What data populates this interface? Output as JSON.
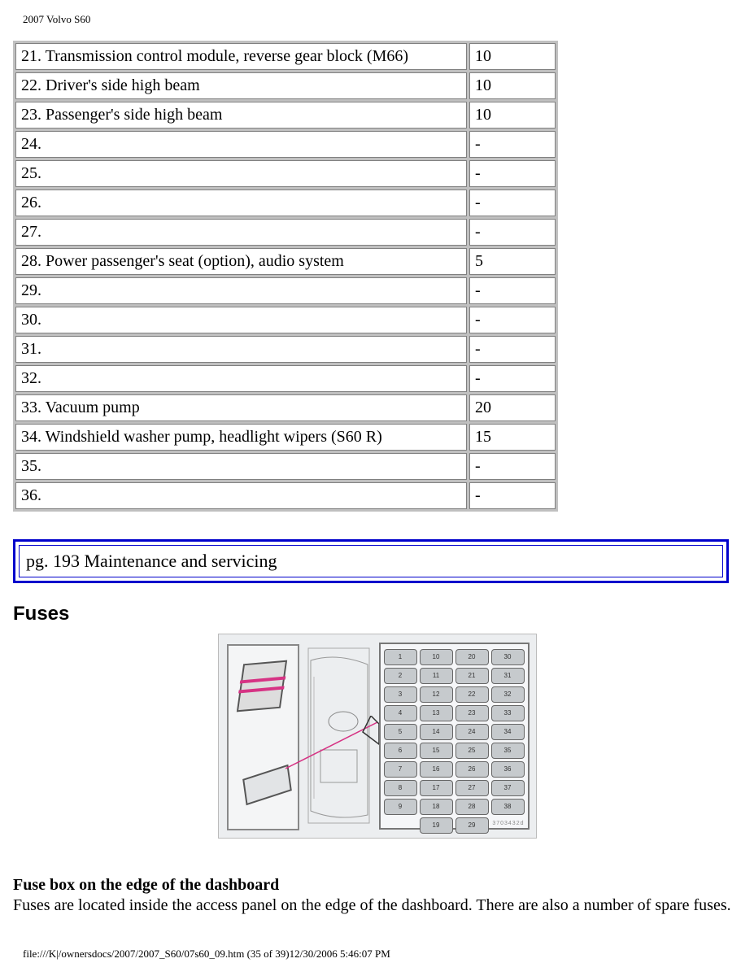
{
  "header": "2007 Volvo S60",
  "fuse_rows": [
    {
      "label": "21. Transmission control module, reverse gear block (M66)",
      "value": "10"
    },
    {
      "label": "22. Driver's side high beam",
      "value": "10"
    },
    {
      "label": "23. Passenger's side high beam",
      "value": "10"
    },
    {
      "label": "24.",
      "value": "-"
    },
    {
      "label": "25.",
      "value": "-"
    },
    {
      "label": "26.",
      "value": "-"
    },
    {
      "label": "27.",
      "value": "-"
    },
    {
      "label": "28. Power passenger's seat (option), audio system",
      "value": "5"
    },
    {
      "label": "29.",
      "value": "-"
    },
    {
      "label": "30.",
      "value": "-"
    },
    {
      "label": "31.",
      "value": "-"
    },
    {
      "label": "32.",
      "value": "-"
    },
    {
      "label": "33. Vacuum pump",
      "value": "20"
    },
    {
      "label": "34. Windshield washer pump, headlight wipers (S60 R)",
      "value": "15"
    },
    {
      "label": "35.",
      "value": "-"
    },
    {
      "label": "36.",
      "value": "-"
    }
  ],
  "page_banner": "pg. 193 Maintenance and servicing",
  "section_heading": "Fuses",
  "diagram": {
    "panel_slots": [
      "1",
      "10",
      "20",
      "30",
      "2",
      "11",
      "21",
      "31",
      "3",
      "12",
      "22",
      "32",
      "4",
      "13",
      "23",
      "33",
      "5",
      "14",
      "24",
      "34",
      "6",
      "15",
      "25",
      "35",
      "7",
      "16",
      "26",
      "36",
      "8",
      "17",
      "27",
      "37",
      "9",
      "18",
      "28",
      "38"
    ],
    "extra_slots": [
      "19",
      "29"
    ],
    "footer_code": "3703432d"
  },
  "subheading": "Fuse box on the edge of the dashboard",
  "body_text": "Fuses are located inside the access panel on the edge of the dashboard. There are also a number of spare fuses.",
  "footer": "file:///K|/ownersdocs/2007/2007_S60/07s60_09.htm (35 of 39)12/30/2006 5:46:07 PM"
}
